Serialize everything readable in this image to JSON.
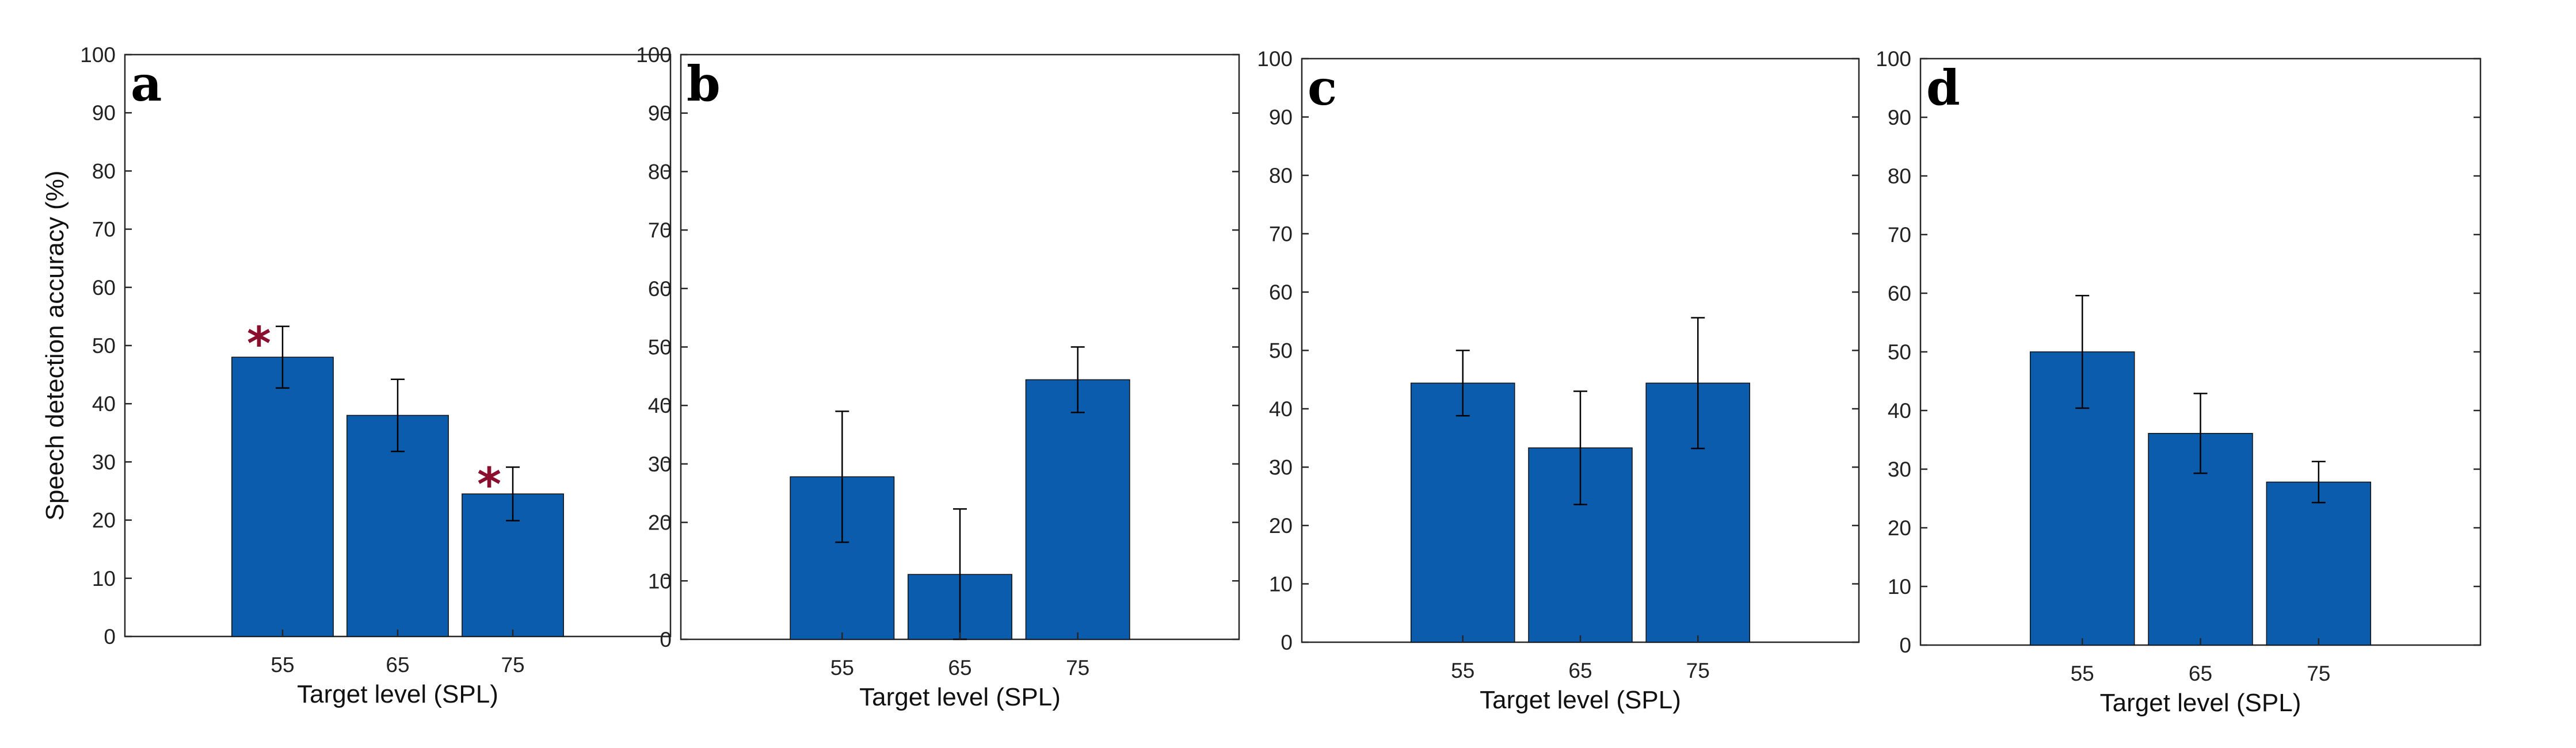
{
  "chart_data": [
    {
      "type": "bar",
      "panel": "a",
      "categories": [
        "55",
        "65",
        "75"
      ],
      "values": [
        48,
        38,
        24.5
      ],
      "errors": [
        5.3,
        6.2,
        4.6
      ],
      "significant": [
        true,
        false,
        true
      ],
      "significance_marker": "*",
      "ylabel": "Speech detection accuracy (%)",
      "xlabel": "Target level (SPL)",
      "ylim": [
        0,
        100
      ],
      "yticks": [
        "0",
        "10",
        "20",
        "30",
        "40",
        "50",
        "60",
        "70",
        "80",
        "90",
        "100"
      ],
      "bar_color": "#0b5cad"
    },
    {
      "type": "bar",
      "panel": "b",
      "categories": [
        "55",
        "65",
        "75"
      ],
      "values": [
        27.8,
        11.1,
        44.4
      ],
      "errors": [
        11.2,
        11.2,
        5.6
      ],
      "significant": [
        false,
        false,
        false
      ],
      "significance_marker": "*",
      "ylabel": "",
      "xlabel": "Target level (SPL)",
      "ylim": [
        0,
        100
      ],
      "yticks": [
        "0",
        "10",
        "20",
        "30",
        "40",
        "50",
        "60",
        "70",
        "80",
        "90",
        "100"
      ],
      "bar_color": "#0b5cad"
    },
    {
      "type": "bar",
      "panel": "c",
      "categories": [
        "55",
        "65",
        "75"
      ],
      "values": [
        44.4,
        33.3,
        44.4
      ],
      "errors": [
        5.6,
        9.7,
        11.2
      ],
      "significant": [
        false,
        false,
        false
      ],
      "significance_marker": "*",
      "ylabel": "",
      "xlabel": "Target level (SPL)",
      "ylim": [
        0,
        100
      ],
      "yticks": [
        "0",
        "10",
        "20",
        "30",
        "40",
        "50",
        "60",
        "70",
        "80",
        "90",
        "100"
      ],
      "bar_color": "#0b5cad"
    },
    {
      "type": "bar",
      "panel": "d",
      "categories": [
        "55",
        "65",
        "75"
      ],
      "values": [
        50,
        36.1,
        27.8
      ],
      "errors": [
        9.6,
        6.8,
        3.5
      ],
      "significant": [
        false,
        false,
        false
      ],
      "significance_marker": "*",
      "ylabel": "",
      "xlabel": "Target level (SPL)",
      "ylim": [
        0,
        100
      ],
      "yticks": [
        "0",
        "10",
        "20",
        "30",
        "40",
        "50",
        "60",
        "70",
        "80",
        "90",
        "100"
      ],
      "bar_color": "#0b5cad"
    }
  ]
}
